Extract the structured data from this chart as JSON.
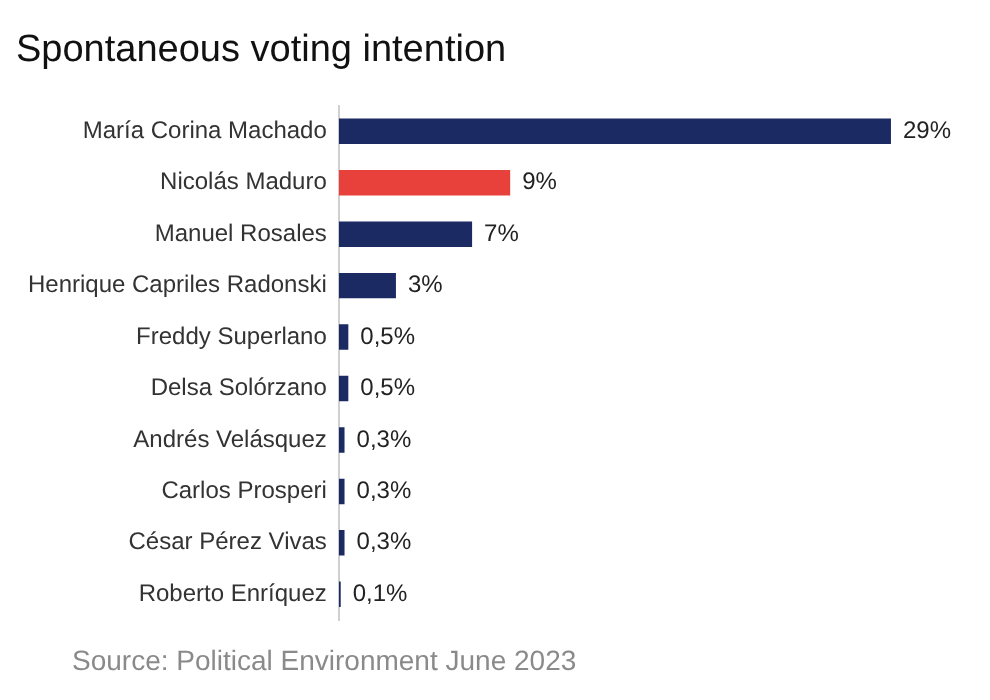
{
  "chart_data": {
    "type": "bar",
    "orientation": "horizontal",
    "title": "Spontaneous voting intention",
    "categories": [
      "María Corina Machado",
      "Nicolás Maduro",
      "Manuel Rosales",
      "Henrique Capriles Radonski",
      "Freddy Superlano",
      "Delsa Solórzano",
      "Andrés Velásquez",
      "Carlos Prosperi",
      "César Pérez Vivas",
      "Roberto Enríquez"
    ],
    "values": [
      29,
      9,
      7,
      3,
      0.5,
      0.5,
      0.3,
      0.3,
      0.3,
      0.1
    ],
    "colors": [
      "#1c2a64",
      "#e8403a",
      "#1c2a64",
      "#1c2a64",
      "#1c2a64",
      "#1c2a64",
      "#1c2a64",
      "#1c2a64",
      "#1c2a64",
      "#1c2a64"
    ],
    "value_labels": [
      "29%",
      "9%",
      "7%",
      "3%",
      "0,5%",
      "0,5%",
      "0,3%",
      "0,3%",
      "0,3%",
      "0,1%"
    ],
    "tick_labels": "y",
    "grid": false,
    "legend": false,
    "annotations": [
      "Source: Political Environment June 2023"
    ]
  }
}
